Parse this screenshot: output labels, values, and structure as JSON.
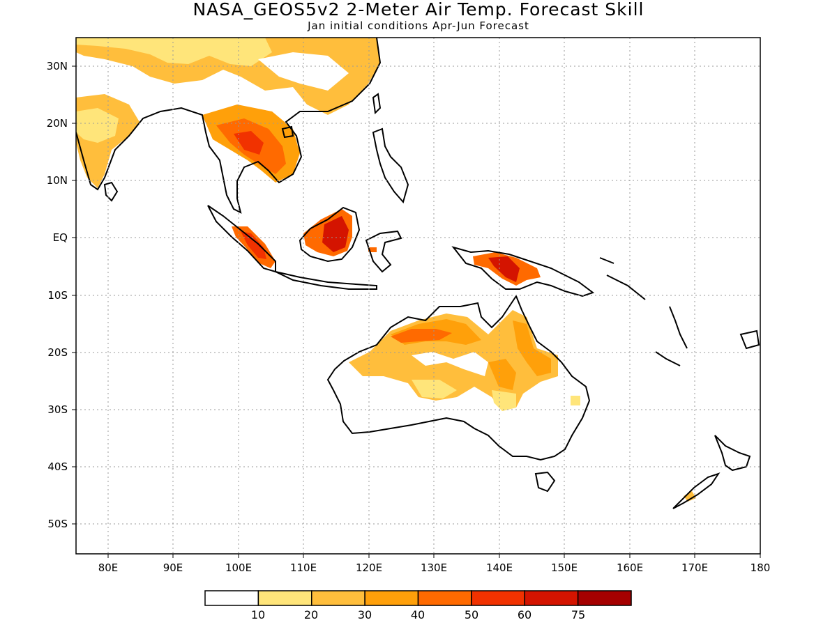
{
  "title": "NASA_GEOS5v2 2-Meter Air Temp. Forecast Skill",
  "subtitle": "Jan initial conditions  Apr-Jun Forecast",
  "map": {
    "lon_range": [
      75,
      180
    ],
    "lat_range": [
      -55,
      35
    ],
    "lon_ticks": [
      "80E",
      "90E",
      "100E",
      "110E",
      "120E",
      "130E",
      "140E",
      "150E",
      "160E",
      "170E",
      "180"
    ],
    "lat_ticks": [
      "30N",
      "20N",
      "10N",
      "EQ",
      "10S",
      "20S",
      "30S",
      "40S",
      "50S"
    ],
    "grid": "dotted"
  },
  "colorbar": {
    "colors": [
      "#ffffff",
      "#ffe57a",
      "#ffbe3c",
      "#ffa00a",
      "#ff6a00",
      "#f13200",
      "#d41400",
      "#a50000"
    ],
    "labels": [
      "10",
      "20",
      "30",
      "40",
      "50",
      "60",
      "75"
    ]
  }
}
